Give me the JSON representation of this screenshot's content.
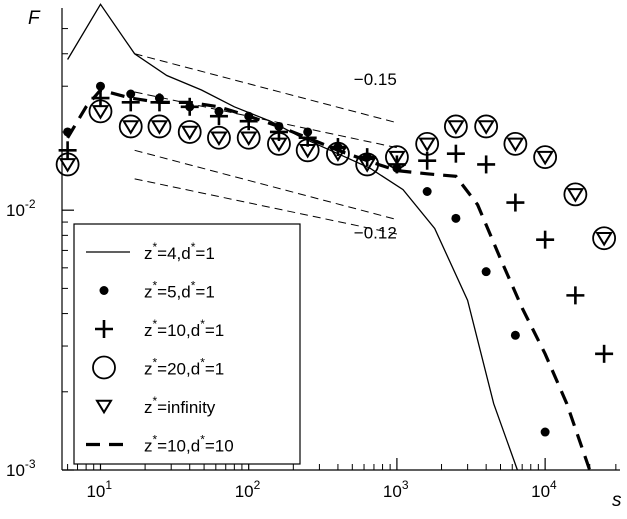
{
  "chart_data": {
    "type": "scatter",
    "xlabel": "s",
    "ylabel": "F",
    "xscale": "log",
    "yscale": "log",
    "xlim": [
      5.5,
      32000
    ],
    "ylim": [
      0.001,
      0.06
    ],
    "x_ticks": [
      {
        "value": 10,
        "mantissa": "10",
        "exp": "1"
      },
      {
        "value": 100,
        "mantissa": "10",
        "exp": "2"
      },
      {
        "value": 1000,
        "mantissa": "10",
        "exp": "3"
      },
      {
        "value": 10000,
        "mantissa": "10",
        "exp": "4"
      }
    ],
    "y_ticks": [
      {
        "value": 0.001,
        "mantissa": "10",
        "exp": "-3"
      },
      {
        "value": 0.01,
        "mantissa": "10",
        "exp": "-2"
      }
    ],
    "x_minor_ticks": [
      6,
      7,
      8,
      9,
      20,
      30,
      40,
      50,
      60,
      70,
      80,
      90,
      200,
      300,
      400,
      500,
      600,
      700,
      800,
      900,
      2000,
      3000,
      4000,
      5000,
      6000,
      7000,
      8000,
      9000,
      20000,
      30000
    ],
    "y_minor_ticks": [
      0.002,
      0.003,
      0.004,
      0.005,
      0.006,
      0.007,
      0.008,
      0.009,
      0.02,
      0.03,
      0.04,
      0.05
    ],
    "grid": false,
    "legend_position": "lower-left",
    "series": [
      {
        "name": "z*=4,d*=1",
        "sup": "*",
        "label_pre": "z",
        "label_post": "=4,d",
        "label_end": "=1",
        "marker": "line-solid",
        "x": [
          6,
          10,
          17,
          28,
          48,
          80,
          140,
          230,
          400,
          660,
          1100,
          1800,
          3000,
          4500,
          6500
        ],
        "y": [
          0.038,
          0.062,
          0.04,
          0.033,
          0.029,
          0.025,
          0.022,
          0.019,
          0.0165,
          0.0145,
          0.012,
          0.0085,
          0.0045,
          0.0018,
          0.001
        ]
      },
      {
        "name": "z*=5,d*=1",
        "label_pre": "z",
        "label_post": "=5,d",
        "label_end": "=1",
        "marker": "dot",
        "x": [
          6,
          10,
          16,
          25,
          40,
          63,
          100,
          160,
          250,
          400,
          630,
          1000,
          1600,
          2500,
          4000,
          6300,
          10000
        ],
        "y": [
          0.02,
          0.03,
          0.028,
          0.027,
          0.025,
          0.024,
          0.023,
          0.021,
          0.02,
          0.0175,
          0.016,
          0.0145,
          0.0118,
          0.0093,
          0.0058,
          0.0033,
          0.0014
        ]
      },
      {
        "name": "z*=10,d*=1",
        "label_pre": "z",
        "label_post": "=10,d",
        "label_end": "=1",
        "marker": "plus",
        "x": [
          6,
          10,
          16,
          25,
          40,
          63,
          100,
          160,
          250,
          400,
          630,
          1000,
          1600,
          2500,
          4000,
          6300,
          10000,
          16000,
          25000
        ],
        "y": [
          0.017,
          0.027,
          0.026,
          0.026,
          0.025,
          0.023,
          0.022,
          0.02,
          0.019,
          0.0175,
          0.016,
          0.015,
          0.0155,
          0.0165,
          0.015,
          0.0107,
          0.0077,
          0.0047,
          0.0028
        ]
      },
      {
        "name": "z*=20,d*=1",
        "label_pre": "z",
        "label_post": "=20,d",
        "label_end": "=1",
        "marker": "circle",
        "x": [
          6,
          10,
          16,
          25,
          40,
          63,
          100,
          160,
          250,
          400,
          630,
          1000,
          1600,
          2500,
          4000,
          6300,
          10000,
          16000,
          25000
        ],
        "y": [
          0.015,
          0.024,
          0.021,
          0.021,
          0.02,
          0.019,
          0.019,
          0.018,
          0.017,
          0.0165,
          0.015,
          0.016,
          0.018,
          0.021,
          0.021,
          0.018,
          0.016,
          0.0115,
          0.0078
        ]
      },
      {
        "name": "z*=infinity",
        "label_pre": "z",
        "label_post": "=infinity",
        "label_end": "",
        "marker": "triangle",
        "x": [
          6,
          10,
          16,
          25,
          40,
          63,
          100,
          160,
          250,
          400,
          630,
          1000,
          1600,
          2500,
          4000,
          6300,
          10000,
          16000,
          25000
        ],
        "y": [
          0.015,
          0.024,
          0.021,
          0.021,
          0.02,
          0.019,
          0.019,
          0.018,
          0.017,
          0.0165,
          0.015,
          0.016,
          0.018,
          0.021,
          0.021,
          0.018,
          0.016,
          0.0115,
          0.0078
        ]
      },
      {
        "name": "z*=10,d*=10",
        "label_pre": "z",
        "label_post": "=10,d",
        "label_end": "=10",
        "marker": "line-dashed",
        "x": [
          6,
          8,
          10,
          16,
          25,
          40,
          63,
          100,
          160,
          250,
          400,
          630,
          1000,
          1600,
          2500,
          3500,
          5000,
          7000,
          10000,
          14000,
          20000
        ],
        "y": [
          0.019,
          0.025,
          0.029,
          0.027,
          0.026,
          0.026,
          0.025,
          0.023,
          0.021,
          0.019,
          0.017,
          0.0155,
          0.0142,
          0.0138,
          0.0135,
          0.0105,
          0.0065,
          0.0042,
          0.0028,
          0.0018,
          0.001
        ]
      }
    ],
    "reference_lines": [
      {
        "slope_label": "−0.15",
        "x": [
          17,
          1000
        ],
        "y": [
          0.04,
          0.0217
        ]
      },
      {
        "slope_label": "−0.15",
        "x": [
          17,
          1000
        ],
        "y": [
          0.017,
          0.0092
        ]
      },
      {
        "slope_label": "−0.12",
        "x": [
          17,
          1000
        ],
        "y": [
          0.0285,
          0.0174
        ]
      },
      {
        "slope_label": "−0.12",
        "x": [
          17,
          1000
        ],
        "y": [
          0.0132,
          0.0081
        ]
      }
    ],
    "annotations": [
      {
        "text": "−0.15",
        "at_x": 1300,
        "at_y": 0.032
      },
      {
        "text": "−0.12",
        "at_x": 1300,
        "at_y": 0.0082
      }
    ]
  }
}
